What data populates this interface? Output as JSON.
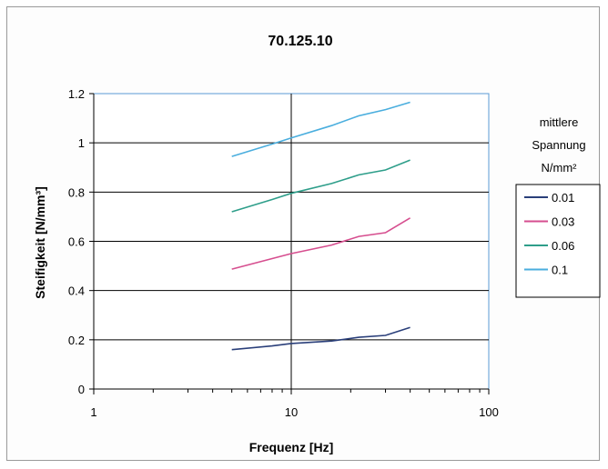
{
  "chart_data": {
    "type": "line",
    "title": "70.125.10",
    "xlabel": "Frequenz [Hz]",
    "ylabel": "Steifigkeit [N/mm³]",
    "x_scale": "log",
    "xlim": [
      1,
      100
    ],
    "ylim": [
      0,
      1.2
    ],
    "x_ticks": [
      1,
      10,
      100
    ],
    "x_tick_labels": [
      "1",
      "10",
      "100"
    ],
    "y_ticks": [
      0,
      0.2,
      0.4,
      0.6,
      0.8,
      1,
      1.2
    ],
    "y_tick_labels": [
      "0",
      "0.2",
      "0.4",
      "0.6",
      "0.8",
      "1",
      "1.2"
    ],
    "grid": "horizontal major lines, vertical line at 10",
    "legend_title": [
      "mittlere",
      "Spannung",
      "N/mm²"
    ],
    "legend_position": "right",
    "x": [
      5,
      8,
      10,
      16,
      22,
      30,
      40
    ],
    "series": [
      {
        "name": "0.01",
        "color": "#2a3f7a",
        "values": [
          0.16,
          0.175,
          0.185,
          0.195,
          0.21,
          0.218,
          0.25
        ]
      },
      {
        "name": "0.03",
        "color": "#d64e8f",
        "values": [
          0.487,
          0.53,
          0.55,
          0.585,
          0.62,
          0.635,
          0.695
        ]
      },
      {
        "name": "0.06",
        "color": "#2e9e8a",
        "values": [
          0.72,
          0.77,
          0.795,
          0.835,
          0.87,
          0.89,
          0.93
        ]
      },
      {
        "name": "0.1",
        "color": "#4aaede",
        "values": [
          0.945,
          0.995,
          1.02,
          1.07,
          1.11,
          1.135,
          1.165
        ]
      }
    ]
  }
}
